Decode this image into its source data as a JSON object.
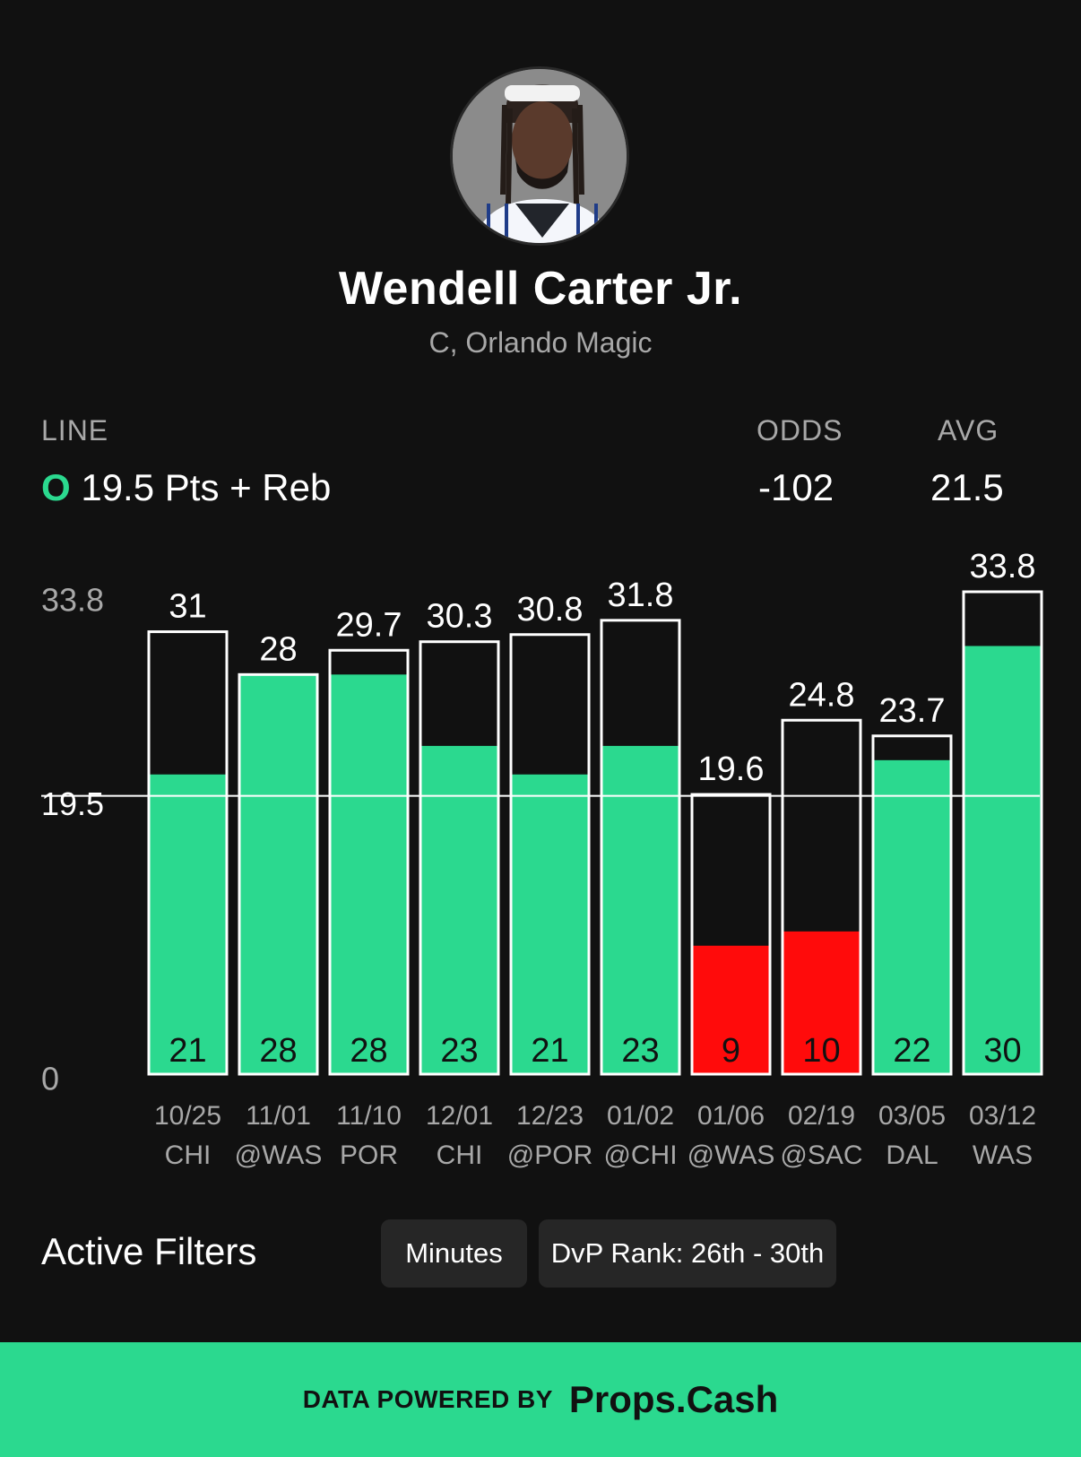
{
  "player": {
    "name": "Wendell Carter Jr.",
    "subtitle": "C, Orlando Magic"
  },
  "line": {
    "label": "LINE",
    "side": "O",
    "value": "19.5 Pts + Reb"
  },
  "odds": {
    "label": "ODDS",
    "value": "-102"
  },
  "avg": {
    "label": "AVG",
    "value": "21.5"
  },
  "colors": {
    "over": "#2bd98f",
    "under": "#ff0b0b",
    "background": "#111111"
  },
  "chart_data": {
    "type": "bar",
    "line_value": 19.5,
    "y_axis_labels": [
      "33.8",
      "19.5",
      "0"
    ],
    "ylim": [
      0,
      33.8
    ],
    "categories": [
      {
        "date": "10/25",
        "opp": "CHI"
      },
      {
        "date": "11/01",
        "opp": "@WAS"
      },
      {
        "date": "11/10",
        "opp": "POR"
      },
      {
        "date": "12/01",
        "opp": "CHI"
      },
      {
        "date": "12/23",
        "opp": "@POR"
      },
      {
        "date": "01/02",
        "opp": "@CHI"
      },
      {
        "date": "01/06",
        "opp": "@WAS"
      },
      {
        "date": "02/19",
        "opp": "@SAC"
      },
      {
        "date": "03/05",
        "opp": "DAL"
      },
      {
        "date": "03/12",
        "opp": "WAS"
      }
    ],
    "series": [
      {
        "name": "outline",
        "values": [
          31,
          28,
          29.7,
          30.3,
          30.8,
          31.8,
          19.6,
          24.8,
          23.7,
          33.8
        ]
      },
      {
        "name": "fill",
        "values": [
          21,
          28,
          28,
          23,
          21,
          23,
          9,
          10,
          22,
          30
        ]
      }
    ],
    "top_labels": [
      "31",
      "28",
      "29.7",
      "30.3",
      "30.8",
      "31.8",
      "19.6",
      "24.8",
      "23.7",
      "33.8"
    ],
    "bottom_labels": [
      "21",
      "28",
      "28",
      "23",
      "21",
      "23",
      "9",
      "10",
      "22",
      "30"
    ],
    "status": [
      "over",
      "over",
      "over",
      "over",
      "over",
      "over",
      "under",
      "under",
      "over",
      "over"
    ]
  },
  "filters": {
    "title": "Active Filters",
    "chips": [
      "Minutes",
      "DvP Rank: 26th - 30th"
    ]
  },
  "footer": {
    "prefix": "DATA POWERED BY",
    "brand": "Props.Cash"
  }
}
